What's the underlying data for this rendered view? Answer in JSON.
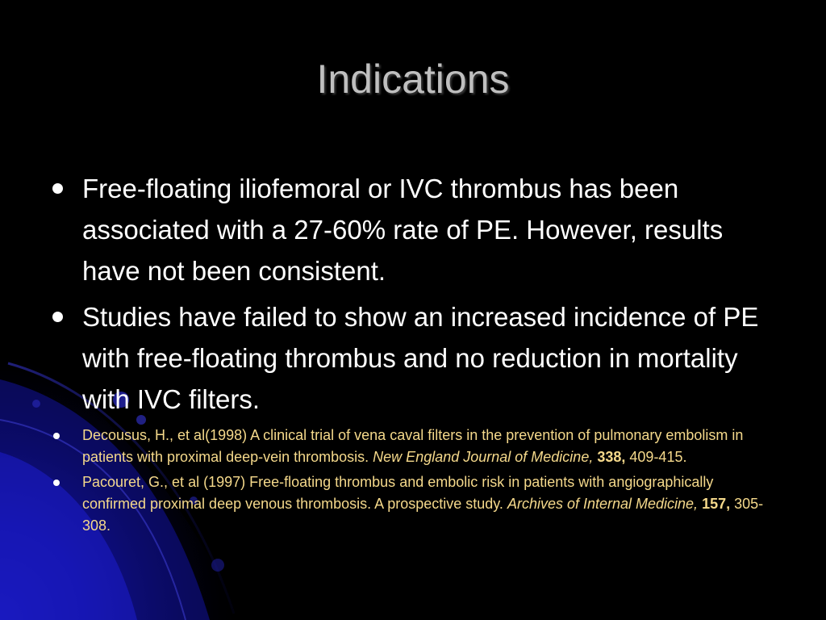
{
  "slide": {
    "title": "Indications",
    "bullets": [
      "Free-floating iliofemoral or IVC thrombus has been associated with a 27-60% rate of PE. However, results have not been consistent.",
      "Studies have failed to show an increased incidence of PE with free-floating thrombus and no reduction in mortality with IVC filters."
    ],
    "references": [
      {
        "text": "Decousus, H., et al(1998) A clinical trial of vena caval filters in the prevention of pulmonary embolism in patients with proximal deep-vein thrombosis. ",
        "journal": "New England Journal of Medicine,",
        "volume": "338,",
        "pages": "409-415."
      },
      {
        "text": "Pacouret, G., et al (1997) Free-floating thrombus and embolic risk in patients with angiographically confirmed proximal deep venous thrombosis. A prospective study. ",
        "journal": "Archives of Internal Medicine,",
        "volume": "157,",
        "pages": "305-308."
      }
    ]
  },
  "colors": {
    "background": "#000000",
    "title": "#bfbfbf",
    "body_text": "#ffffff",
    "reference_text": "#f5d98b",
    "accent_blue": "#1a1aa0"
  }
}
